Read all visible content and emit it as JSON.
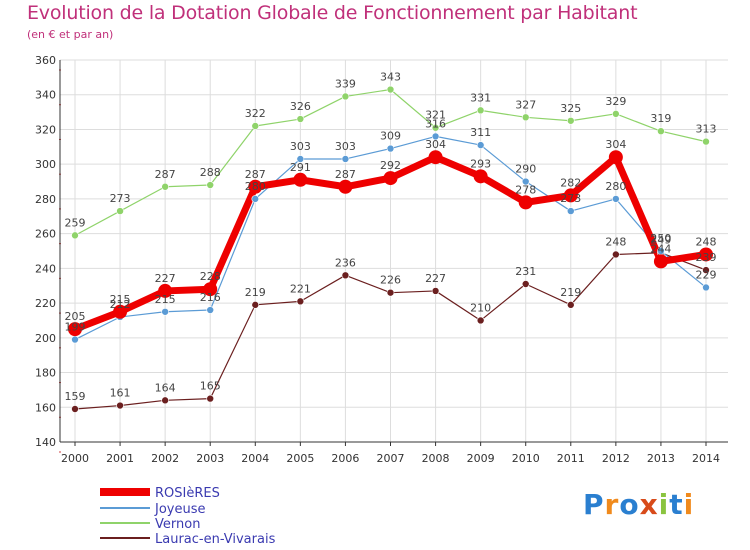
{
  "title": "Evolution de la Dotation Globale de Fonctionnement par Habitant",
  "subtitle": "(en € et par an)",
  "logo": {
    "p": "P",
    "r": "r",
    "o": "o",
    "x": "x",
    "i": "i",
    "t": "t",
    "i2": "i"
  },
  "colors": {
    "title": "#c0307a",
    "rosieres": "#ee0000",
    "joyeuse": "#5b9bd5",
    "vernon": "#8fd36a",
    "laurac": "#6b1f1f"
  },
  "chart_data": {
    "type": "line",
    "title": "Evolution de la Dotation Globale de Fonctionnement par Habitant",
    "ylabel": "(en € et par an)",
    "xlabel": "",
    "ylim": [
      140,
      360
    ],
    "y_ticks": [
      "140",
      "160",
      "180",
      "200",
      "220",
      "240",
      "260",
      "280",
      "300",
      "320",
      "340",
      "360"
    ],
    "categories": [
      "2000",
      "2001",
      "2002",
      "2003",
      "2004",
      "2005",
      "2006",
      "2007",
      "2008",
      "2009",
      "2010",
      "2011",
      "2012",
      "2013",
      "2014"
    ],
    "series": [
      {
        "name": "ROSIèRES",
        "values": [
          205,
          215,
          227,
          228,
          287,
          291,
          287,
          292,
          304,
          293,
          278,
          282,
          304,
          244,
          248
        ]
      },
      {
        "name": "Joyeuse",
        "values": [
          199,
          212,
          215,
          216,
          280,
          303,
          303,
          309,
          316,
          311,
          290,
          273,
          280,
          250,
          229
        ]
      },
      {
        "name": "Vernon",
        "values": [
          259,
          273,
          287,
          288,
          322,
          326,
          339,
          343,
          321,
          331,
          327,
          325,
          329,
          319,
          313
        ]
      },
      {
        "name": "Laurac-en-Vivarais",
        "values": [
          159,
          161,
          164,
          165,
          219,
          221,
          236,
          226,
          227,
          210,
          231,
          219,
          248,
          249,
          239
        ]
      }
    ],
    "value_labels": [
      [
        "205",
        "215",
        "227",
        "228",
        "287",
        "291",
        "287",
        "292",
        "304",
        "293",
        "278",
        "282",
        "304",
        "244",
        "248"
      ],
      [
        "199",
        "212",
        "215",
        "216",
        "280",
        "303",
        "303",
        "309",
        "316",
        "311",
        "290",
        "273",
        "280",
        "250",
        "229"
      ],
      [
        "259",
        "273",
        "287",
        "288",
        "322",
        "326",
        "339",
        "343",
        "321",
        "331",
        "327",
        "325",
        "329",
        "319",
        "313"
      ],
      [
        "159",
        "161",
        "164",
        "165",
        "219",
        "221",
        "236",
        "226",
        "227",
        "210",
        "231",
        "219",
        "248",
        "249",
        "239"
      ]
    ]
  }
}
